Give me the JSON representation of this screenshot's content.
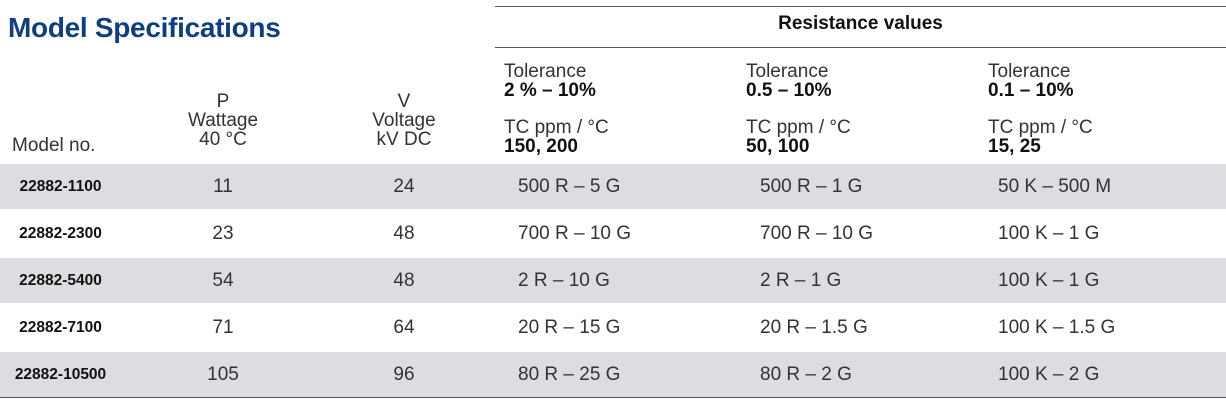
{
  "title": "Model Specifications",
  "resistance_header": "Resistance values",
  "columns": {
    "model": "Model no.",
    "wattage": [
      "P",
      "Wattage",
      "40 °C"
    ],
    "voltage": [
      "V",
      "Voltage",
      "kV DC"
    ],
    "tol_groups": [
      {
        "tol_label": "Tolerance",
        "tol_value": "2 % – 10%",
        "tc_label": "TC ppm / °C",
        "tc_value": "150, 200"
      },
      {
        "tol_label": "Tolerance",
        "tol_value": "0.5 – 10%",
        "tc_label": "TC ppm / °C",
        "tc_value": "50, 100"
      },
      {
        "tol_label": "Tolerance",
        "tol_value": "0.1 – 10%",
        "tc_label": "TC ppm / °C",
        "tc_value": "15, 25"
      }
    ]
  },
  "rows": [
    {
      "model": "22882-1100",
      "wattage": "11",
      "voltage": "24",
      "r1": "500 R – 5 G",
      "r2": "500 R – 1 G",
      "r3": "50 K – 500 M"
    },
    {
      "model": "22882-2300",
      "wattage": "23",
      "voltage": "48",
      "r1": "700 R – 10 G",
      "r2": "700 R – 10 G",
      "r3": "100 K – 1 G"
    },
    {
      "model": "22882-5400",
      "wattage": "54",
      "voltage": "48",
      "r1": "2 R – 10 G",
      "r2": "2 R – 1 G",
      "r3": "100 K – 1 G"
    },
    {
      "model": "22882-7100",
      "wattage": "71",
      "voltage": "64",
      "r1": "20 R – 15 G",
      "r2": "20 R – 1.5 G",
      "r3": "100 K – 1.5 G"
    },
    {
      "model": "22882-10500",
      "wattage": "105",
      "voltage": "96",
      "r1": "80 R – 25 G",
      "r2": "80 R – 2 G",
      "r3": "100 K – 2 G"
    }
  ]
}
